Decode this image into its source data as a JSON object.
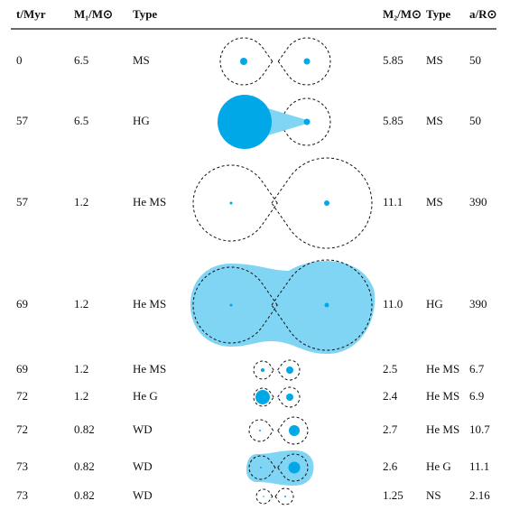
{
  "table": {
    "header": [
      "t/Myr",
      "M₁/M⊙",
      "Type",
      "M₂/M⊙",
      "Type",
      "a/R⊙"
    ],
    "rows": [
      [
        "0",
        "6.5",
        "MS",
        "5.85",
        "MS",
        "50"
      ],
      [
        "57",
        "6.5",
        "HG",
        "5.85",
        "MS",
        "50"
      ],
      [
        "57",
        "1.2",
        "He MS",
        "11.1",
        "MS",
        "390"
      ],
      [
        "69",
        "1.2",
        "He MS",
        "11.0",
        "HG",
        "390"
      ],
      [
        "69",
        "1.2",
        "He MS",
        "2.5",
        "He MS",
        "6.7"
      ],
      [
        "72",
        "1.2",
        "He G",
        "2.4",
        "He MS",
        "6.9"
      ],
      [
        "72",
        "0.82",
        "WD",
        "2.7",
        "He MS",
        "10.7"
      ],
      [
        "73",
        "0.82",
        "WD",
        "2.6",
        "He G",
        "11.1"
      ],
      [
        "73",
        "0.82",
        "WD",
        "1.25",
        "NS",
        "2.16"
      ]
    ]
  }
}
